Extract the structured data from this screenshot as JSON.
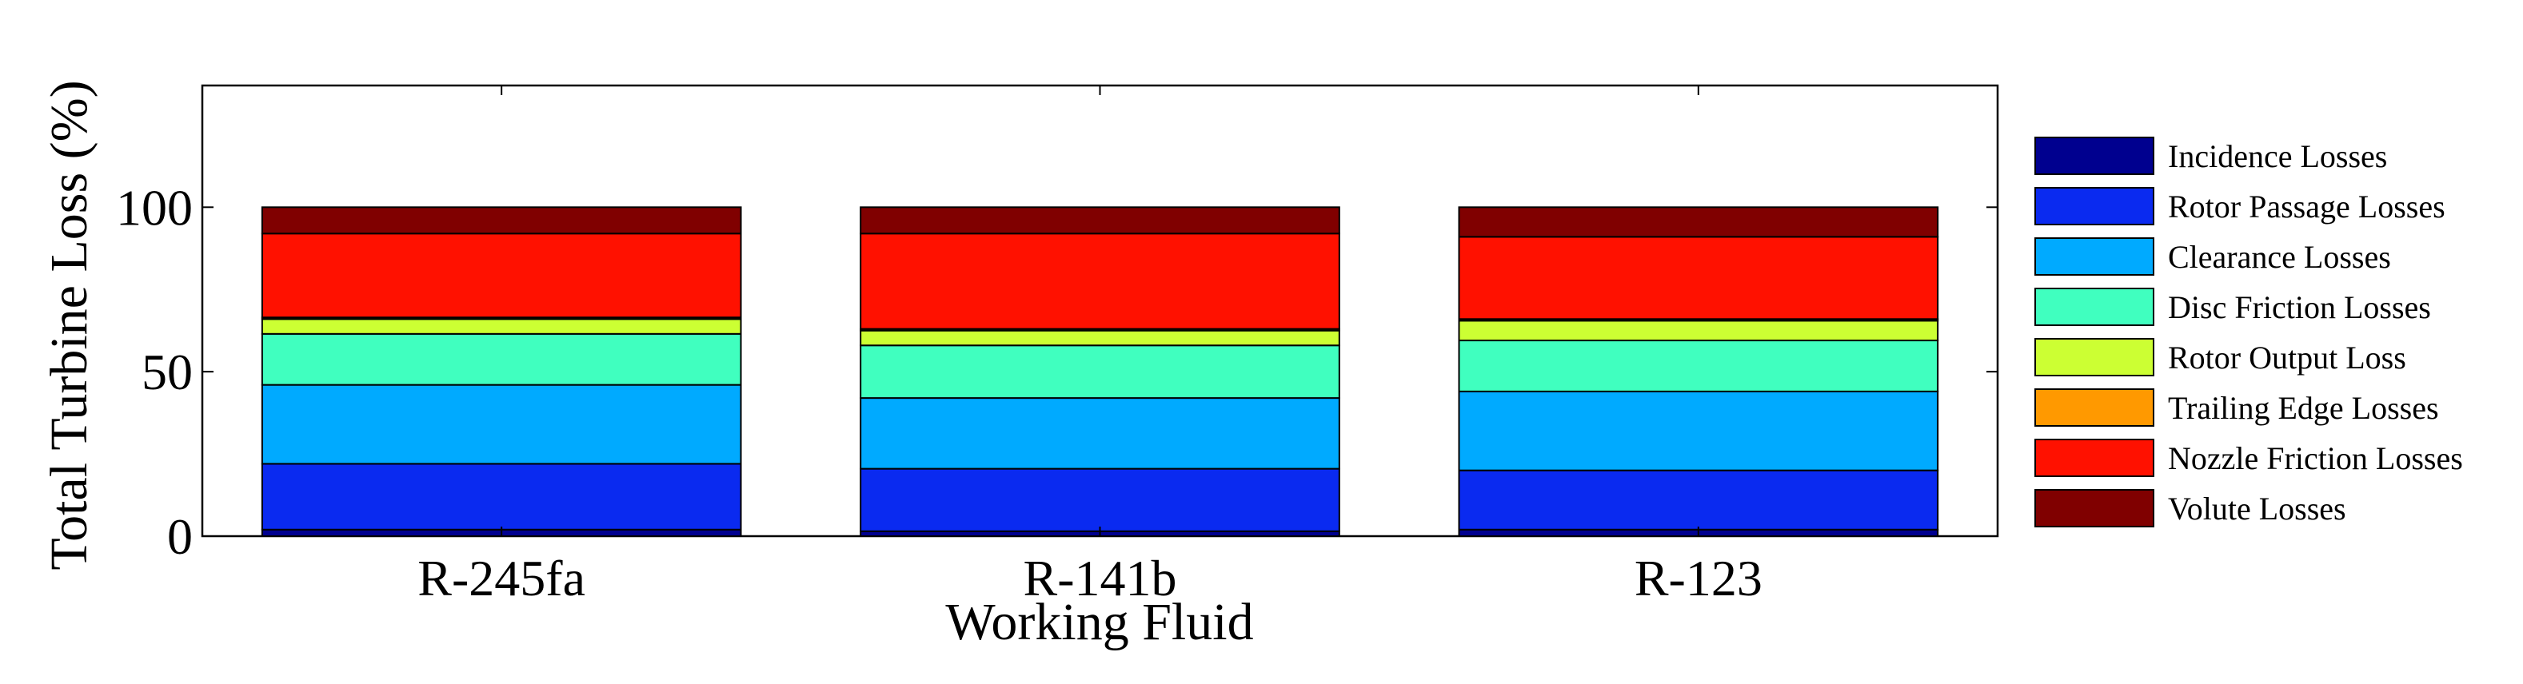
{
  "chart_data": {
    "type": "bar",
    "stacked": true,
    "title": "",
    "xlabel": "Working Fluid",
    "ylabel": "Total Turbine Loss (%)",
    "categories": [
      "R-245fa",
      "R-141b",
      "R-123"
    ],
    "ylim": [
      0,
      137
    ],
    "yticks": [
      0,
      50,
      100
    ],
    "grid": false,
    "legend_position": "right",
    "series": [
      {
        "name": "Incidence Losses",
        "color": "#00008f",
        "values": [
          2,
          1.5,
          2
        ]
      },
      {
        "name": "Rotor Passage Losses",
        "color": "#0a2af0",
        "values": [
          20,
          19,
          18
        ]
      },
      {
        "name": "Clearance Losses",
        "color": "#00aaff",
        "values": [
          24,
          21.5,
          24
        ]
      },
      {
        "name": "Disc Friction Losses",
        "color": "#40ffbf",
        "values": [
          15.5,
          16,
          15.5
        ]
      },
      {
        "name": "Rotor Output Loss",
        "color": "#ccff33",
        "values": [
          4.5,
          4.5,
          6
        ]
      },
      {
        "name": "Trailing Edge Losses",
        "color": "#ff9900",
        "values": [
          0.5,
          0.5,
          0.5
        ]
      },
      {
        "name": "Nozzle Friction Losses",
        "color": "#ff1100",
        "values": [
          25.5,
          29,
          25
        ]
      },
      {
        "name": "Volute Losses",
        "color": "#800000",
        "values": [
          8,
          8,
          9
        ]
      }
    ]
  }
}
